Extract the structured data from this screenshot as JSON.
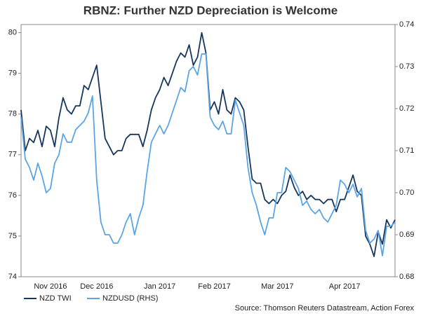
{
  "chart_data": {
    "type": "line",
    "title": "RBNZ: Further NZD Depreciation is Welcome",
    "source": "Source: Thomson Reuters Datastream, Action Forex",
    "categories": [
      null,
      null,
      null,
      null,
      null,
      null,
      null,
      "Nov 2016",
      null,
      null,
      null,
      null,
      null,
      null,
      null,
      null,
      null,
      null,
      "Dec 2016",
      null,
      null,
      null,
      null,
      null,
      null,
      null,
      null,
      null,
      null,
      null,
      null,
      null,
      null,
      "Jan 2017",
      null,
      null,
      null,
      null,
      null,
      null,
      null,
      null,
      null,
      null,
      null,
      null,
      "Feb 2017",
      null,
      null,
      null,
      null,
      null,
      null,
      null,
      null,
      null,
      null,
      null,
      null,
      null,
      null,
      "Mar 2017",
      null,
      null,
      null,
      null,
      null,
      null,
      null,
      null,
      null,
      null,
      null,
      null,
      null,
      null,
      null,
      "Apr 2017",
      null,
      null,
      null,
      null,
      null,
      null,
      null,
      null,
      null,
      null,
      null,
      null
    ],
    "series": [
      {
        "name": "NZD TWI",
        "color": "#17365d",
        "axis": "y",
        "values": [
          78.1,
          77.1,
          77.4,
          77.3,
          77.6,
          77.2,
          77.7,
          77.6,
          77.2,
          77.9,
          78.4,
          78.1,
          78.0,
          78.2,
          78.2,
          78.7,
          78.6,
          78.9,
          79.2,
          78.3,
          77.4,
          77.2,
          77.0,
          77.1,
          77.1,
          77.4,
          77.5,
          77.5,
          77.5,
          77.2,
          77.6,
          78.1,
          78.4,
          78.6,
          78.9,
          78.7,
          79.0,
          79.3,
          79.5,
          79.4,
          79.7,
          79.2,
          79.4,
          80.0,
          79.5,
          78.1,
          78.3,
          78.0,
          78.6,
          78.1,
          78.0,
          78.4,
          78.3,
          78.1,
          77.2,
          76.4,
          76.3,
          76.3,
          75.9,
          75.8,
          75.9,
          75.8,
          76.0,
          76.1,
          76.5,
          76.2,
          76.0,
          76.1,
          75.9,
          76.0,
          75.9,
          75.9,
          75.8,
          75.9,
          75.9,
          75.6,
          75.9,
          75.9,
          76.2,
          76.5,
          76.1,
          76.0,
          75.0,
          74.8,
          74.5,
          75.1,
          74.8,
          75.4,
          75.2,
          75.4
        ]
      },
      {
        "name": "NZDUSD (RHS)",
        "color": "#5ba4e5",
        "axis": "y2",
        "values": [
          0.718,
          0.708,
          0.706,
          0.703,
          0.707,
          0.704,
          0.7,
          0.701,
          0.707,
          0.709,
          0.714,
          0.712,
          0.712,
          0.715,
          0.716,
          0.717,
          0.719,
          0.723,
          0.703,
          0.693,
          0.69,
          0.69,
          0.688,
          0.688,
          0.69,
          0.693,
          0.695,
          0.69,
          0.694,
          0.697,
          0.705,
          0.712,
          0.714,
          0.716,
          0.714,
          0.716,
          0.719,
          0.722,
          0.725,
          0.724,
          0.729,
          0.73,
          0.728,
          0.733,
          0.733,
          0.718,
          0.716,
          0.715,
          0.717,
          0.714,
          0.714,
          0.722,
          0.719,
          0.716,
          0.706,
          0.7,
          0.697,
          0.693,
          0.69,
          0.694,
          0.694,
          0.7,
          0.7,
          0.706,
          0.705,
          0.703,
          0.701,
          0.697,
          0.698,
          0.696,
          0.695,
          0.696,
          0.694,
          0.693,
          0.695,
          0.697,
          0.703,
          0.702,
          0.7,
          0.702,
          0.699,
          0.701,
          0.691,
          0.688,
          0.689,
          0.691,
          0.685,
          0.692,
          0.692,
          0.693
        ]
      }
    ],
    "ylim": [
      74,
      80.2
    ],
    "yticks": [
      74,
      75,
      76,
      77,
      78,
      79,
      80
    ],
    "y2lim": [
      0.68,
      0.74
    ],
    "y2ticks": [
      0.68,
      0.69,
      {
        "value": 0.7,
        "label": "0.70"
      },
      0.71,
      0.72,
      0.73,
      0.74
    ],
    "legend": "bottom-left"
  }
}
